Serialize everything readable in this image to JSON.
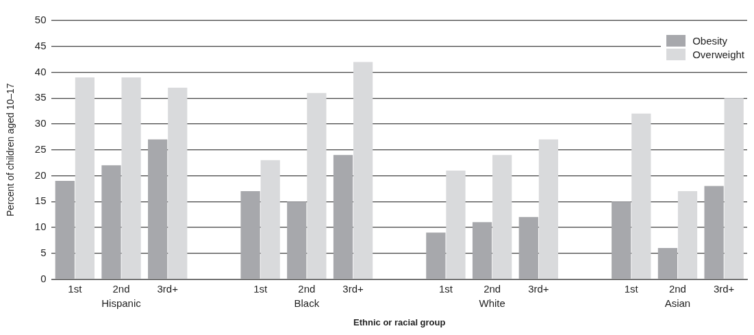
{
  "chart_data": {
    "type": "bar",
    "xlabel": "Ethnic or racial group",
    "ylabel": "Percent of children aged 10–17",
    "categories": [
      "1st",
      "2nd",
      "3rd+",
      null,
      "1st",
      "2nd",
      "3rd+",
      null,
      "1st",
      "2nd",
      "3rd+",
      null,
      "1st",
      "2nd",
      "3rd+"
    ],
    "series": [
      {
        "name": "Obesity",
        "color": "#a7a8ac",
        "values": [
          19,
          22,
          27,
          null,
          17,
          15,
          24,
          null,
          9,
          11,
          12,
          null,
          15,
          6,
          18
        ]
      },
      {
        "name": "Overweight",
        "color": "#d9dadc",
        "values": [
          39,
          39,
          37,
          null,
          23,
          36,
          42,
          null,
          21,
          24,
          27,
          null,
          32,
          17,
          35
        ]
      }
    ],
    "annotations": [
      "Hispanic",
      "Black",
      "White",
      "Asian"
    ],
    "ylim": [
      0,
      50
    ],
    "yticks": [
      0,
      5,
      10,
      15,
      20,
      25,
      30,
      35,
      40,
      45,
      50
    ],
    "grid": "y",
    "legend": "top right"
  }
}
